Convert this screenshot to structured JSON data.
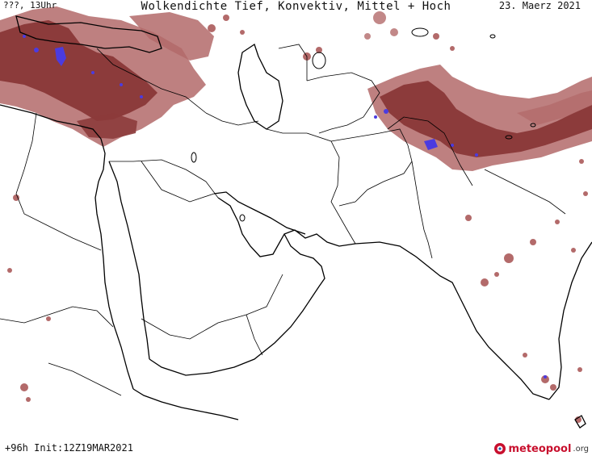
{
  "header": {
    "valid_label": "???, 13Uhr",
    "title": "Wolkendichte  Tief, Konvektiv, Mittel + Hoch",
    "date": "23. Maerz 2021"
  },
  "footer": {
    "run_info": "+96h  Init:12Z19MAR2021"
  },
  "logo": {
    "brand": "meteopool",
    "tld": ".org",
    "icon": "meteopool-logo-icon"
  },
  "colors": {
    "background": "#ffffff",
    "border": "#000000",
    "cloud_medium": "#b36a6a",
    "cloud_dense": "#8c3b3b",
    "convective": "#4b3be0",
    "brand_red": "#c8102e"
  }
}
